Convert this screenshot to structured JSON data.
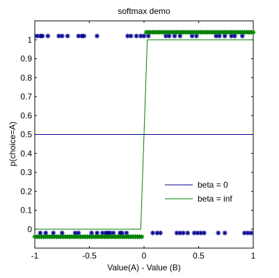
{
  "chart_data": {
    "type": "line",
    "title": "softmax demo",
    "xlabel": "Value(A) - Value (B)",
    "ylabel": "p(choice=A)",
    "xlim": [
      -1,
      1
    ],
    "ylim": [
      -0.1,
      1.1
    ],
    "grid": false,
    "legend_position": "bottom-right",
    "xticks": [
      -1,
      -0.5,
      0,
      0.5,
      1
    ],
    "xtick_labels": [
      "-1",
      "-0.5",
      "0",
      "0.5",
      "1"
    ],
    "yticks": [
      0,
      0.1,
      0.2,
      0.3,
      0.4,
      0.5,
      0.6,
      0.7,
      0.8,
      0.9,
      1
    ],
    "ytick_labels": [
      "0",
      "0.1",
      "0.2",
      "0.3",
      "0.4",
      "0.5",
      "0.6",
      "0.7",
      "0.8",
      "0.9",
      "1"
    ],
    "series": [
      {
        "name": "beta = 0",
        "color": "#00008f",
        "line": {
          "x": [
            -1,
            1
          ],
          "y": [
            0.5,
            0.5
          ]
        },
        "choices_x": [
          -0.98,
          -0.95,
          -0.93,
          -0.88,
          -0.78,
          -0.75,
          -0.7,
          -0.6,
          -0.57,
          -0.55,
          -0.43,
          -0.15,
          -0.12,
          -0.07,
          -0.03,
          0.0,
          0.04,
          -0.95,
          -0.9,
          -0.83,
          -0.75,
          -0.63,
          -0.6,
          -0.48,
          -0.43,
          -0.38,
          -0.35,
          -0.33,
          -0.31,
          -0.28,
          -0.22,
          -0.2,
          -0.16,
          0.08,
          0.12,
          0.15,
          0.3,
          0.33,
          0.36,
          0.4,
          0.46,
          0.49,
          0.52,
          0.55,
          0.68,
          0.74,
          0.92,
          0.95,
          0.98,
          0.2,
          0.23,
          0.28,
          0.33,
          0.44,
          0.48,
          0.66,
          0.69,
          0.74,
          0.8,
          0.83,
          0.9
        ],
        "choices_y": [
          1.02,
          1.02,
          1.02,
          1.02,
          1.02,
          1.02,
          1.02,
          1.02,
          1.02,
          1.02,
          1.02,
          1.02,
          1.02,
          1.02,
          1.02,
          1.02,
          1.02,
          -0.02,
          -0.02,
          -0.02,
          -0.02,
          -0.02,
          -0.02,
          -0.02,
          -0.02,
          -0.02,
          -0.02,
          -0.02,
          -0.02,
          -0.02,
          -0.02,
          -0.02,
          -0.02,
          -0.02,
          -0.02,
          -0.02,
          -0.02,
          -0.02,
          -0.02,
          -0.02,
          -0.02,
          -0.02,
          -0.02,
          -0.02,
          -0.02,
          -0.02,
          -0.02,
          -0.02,
          -0.02,
          1.02,
          1.02,
          1.02,
          1.02,
          1.02,
          1.02,
          1.02,
          1.02,
          1.02,
          1.02,
          1.02,
          1.02
        ]
      },
      {
        "name": "beta = inf",
        "color": "#007f00",
        "line": {
          "x": [
            -1,
            -0.03,
            0.03,
            1
          ],
          "y": [
            0,
            0,
            1,
            1
          ]
        },
        "choices_x": [
          -1,
          -0.98,
          -0.96,
          -0.94,
          -0.92,
          -0.9,
          -0.88,
          -0.86,
          -0.84,
          -0.82,
          -0.8,
          -0.78,
          -0.76,
          -0.74,
          -0.72,
          -0.7,
          -0.68,
          -0.66,
          -0.64,
          -0.62,
          -0.6,
          -0.58,
          -0.56,
          -0.54,
          -0.52,
          -0.5,
          -0.48,
          -0.46,
          -0.44,
          -0.42,
          -0.4,
          -0.38,
          -0.36,
          -0.34,
          -0.32,
          -0.3,
          -0.28,
          -0.26,
          -0.24,
          -0.22,
          -0.2,
          -0.18,
          -0.16,
          -0.14,
          -0.12,
          -0.1,
          -0.08,
          -0.06,
          -0.04,
          -0.02,
          0.02,
          0.04,
          0.06,
          0.08,
          0.1,
          0.12,
          0.14,
          0.16,
          0.18,
          0.2,
          0.22,
          0.24,
          0.26,
          0.28,
          0.3,
          0.32,
          0.34,
          0.36,
          0.38,
          0.4,
          0.42,
          0.44,
          0.46,
          0.48,
          0.5,
          0.52,
          0.54,
          0.56,
          0.58,
          0.6,
          0.62,
          0.64,
          0.66,
          0.68,
          0.7,
          0.72,
          0.74,
          0.76,
          0.78,
          0.8,
          0.82,
          0.84,
          0.86,
          0.88,
          0.9,
          0.92,
          0.94,
          0.96,
          0.98,
          1
        ],
        "choices_y": [
          -0.04,
          -0.04,
          -0.04,
          -0.04,
          -0.04,
          -0.04,
          -0.04,
          -0.04,
          -0.04,
          -0.04,
          -0.04,
          -0.04,
          -0.04,
          -0.04,
          -0.04,
          -0.04,
          -0.04,
          -0.04,
          -0.04,
          -0.04,
          -0.04,
          -0.04,
          -0.04,
          -0.04,
          -0.04,
          -0.04,
          -0.04,
          -0.04,
          -0.04,
          -0.04,
          -0.04,
          -0.04,
          -0.04,
          -0.04,
          -0.04,
          -0.04,
          -0.04,
          -0.04,
          -0.04,
          -0.04,
          -0.04,
          -0.04,
          -0.04,
          -0.04,
          -0.04,
          -0.04,
          -0.04,
          -0.04,
          -0.04,
          -0.04,
          1.04,
          1.04,
          1.04,
          1.04,
          1.04,
          1.04,
          1.04,
          1.04,
          1.04,
          1.04,
          1.04,
          1.04,
          1.04,
          1.04,
          1.04,
          1.04,
          1.04,
          1.04,
          1.04,
          1.04,
          1.04,
          1.04,
          1.04,
          1.04,
          1.04,
          1.04,
          1.04,
          1.04,
          1.04,
          1.04,
          1.04,
          1.04,
          1.04,
          1.04,
          1.04,
          1.04,
          1.04,
          1.04,
          1.04,
          1.04,
          1.04,
          1.04,
          1.04,
          1.04,
          1.04,
          1.04,
          1.04,
          1.04,
          1.04,
          1.04
        ]
      }
    ]
  }
}
